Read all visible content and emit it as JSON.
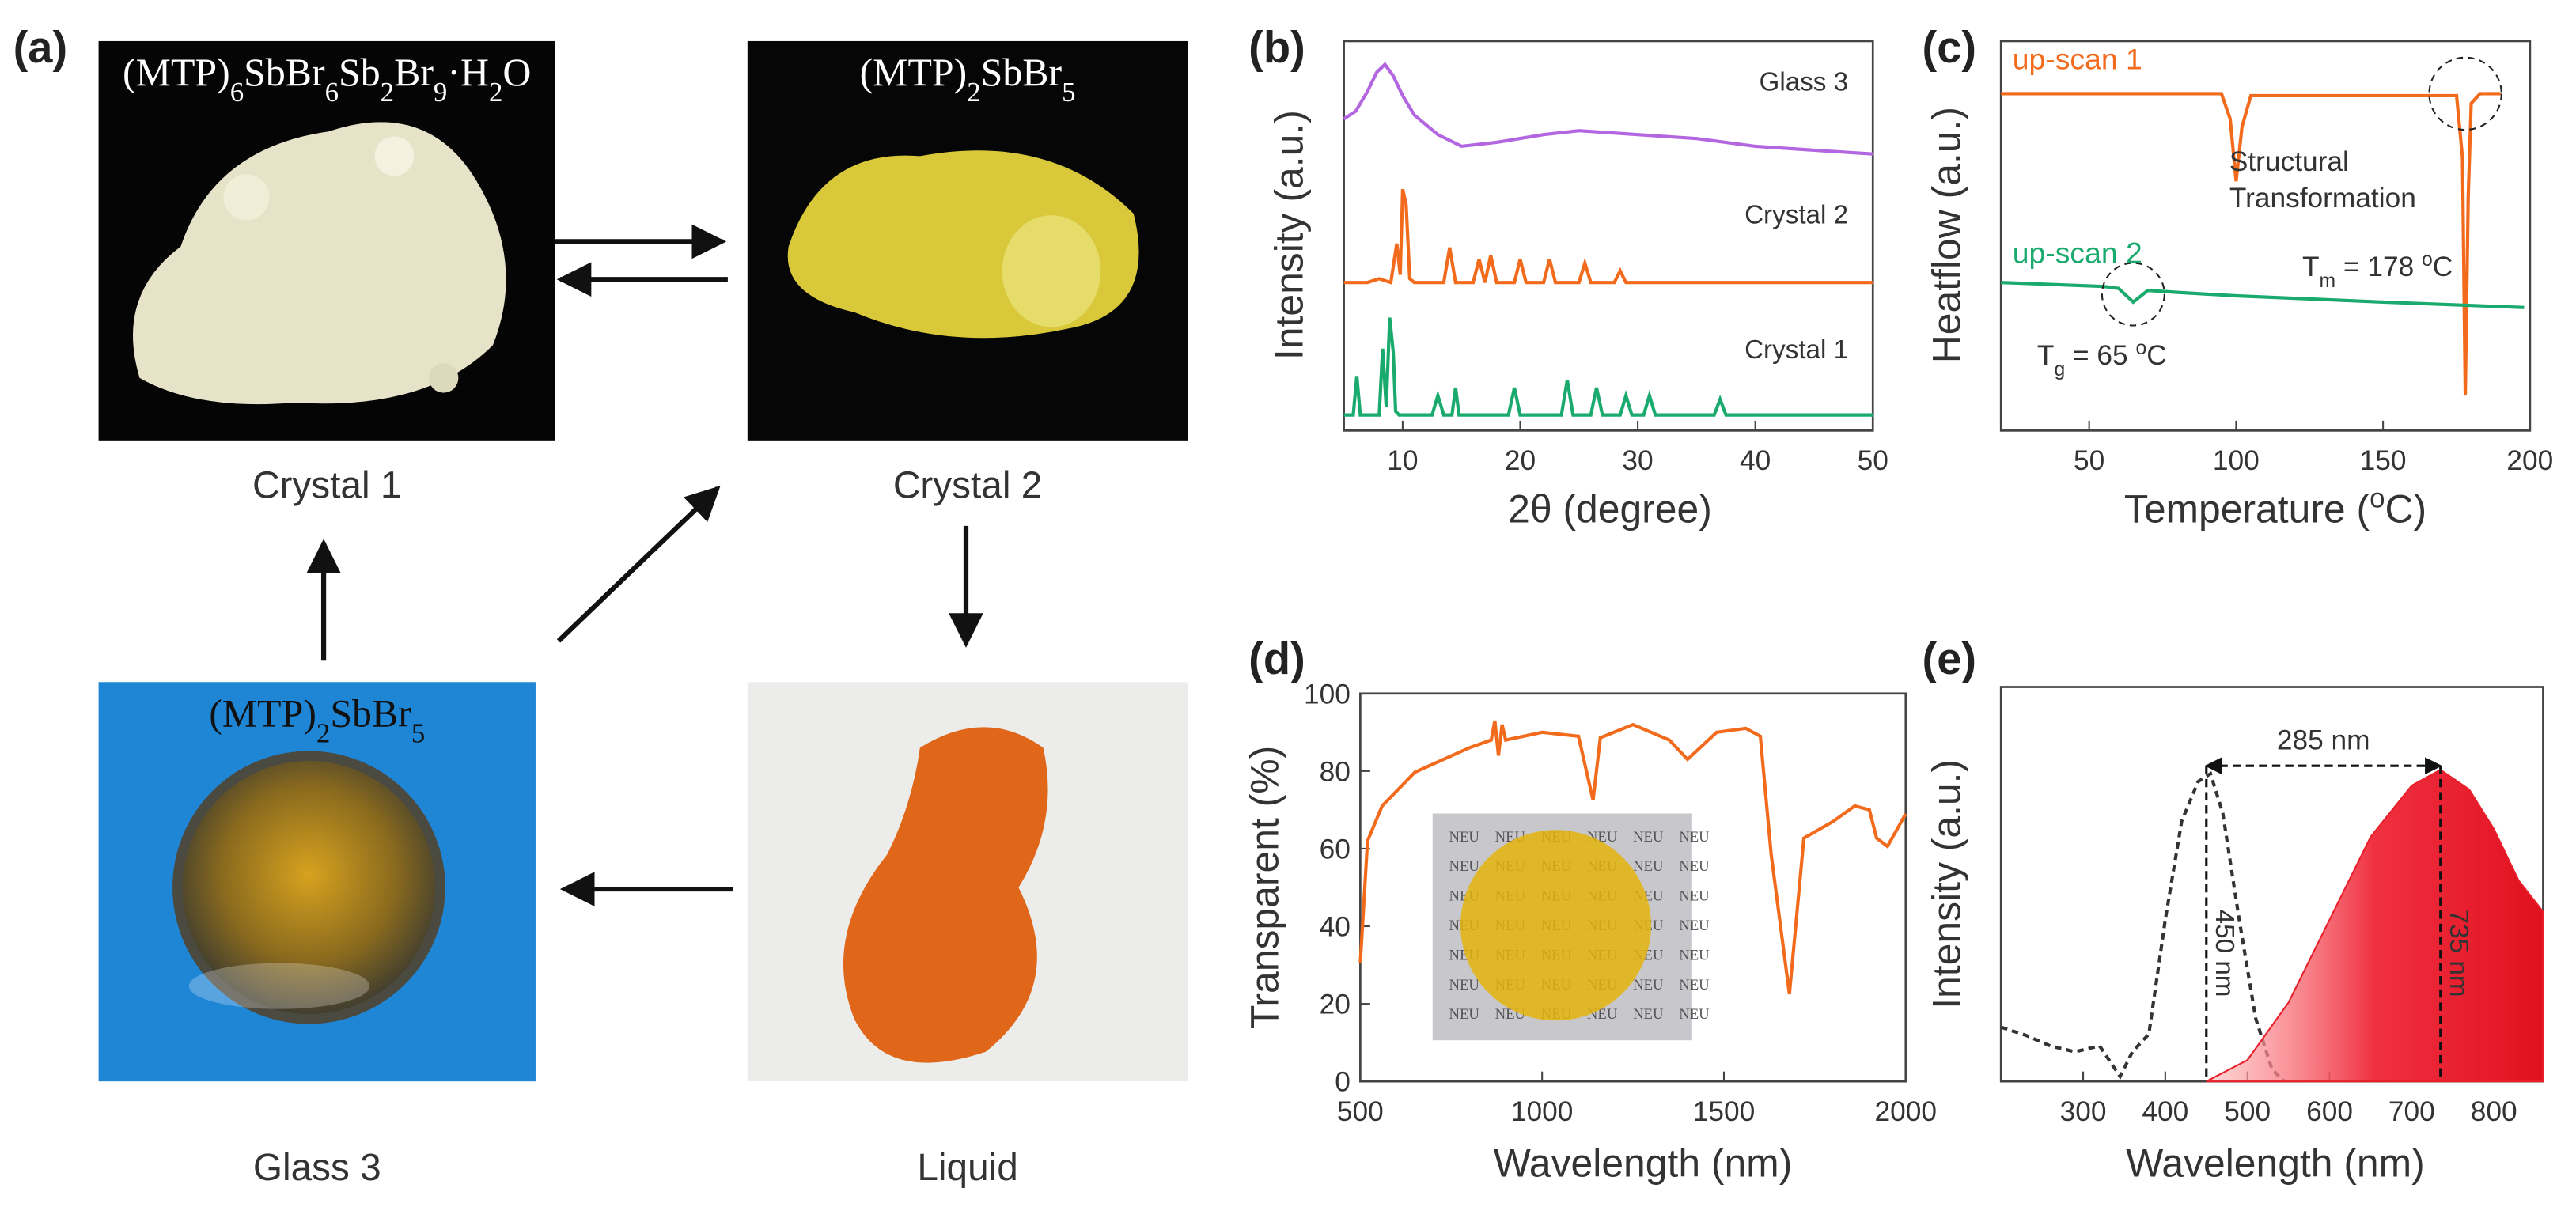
{
  "panel_labels": [
    "(a)",
    "(b)",
    "(c)",
    "(d)",
    "(e)"
  ],
  "photos": [
    {
      "caption": "Crystal 1",
      "formula": [
        {
          "text": "(MTP)"
        },
        {
          "text": "6",
          "script": "sub"
        },
        {
          "text": "SbBr"
        },
        {
          "text": "6",
          "script": "sub"
        },
        {
          "text": "Sb"
        },
        {
          "text": "2",
          "script": "sub"
        },
        {
          "text": "Br"
        },
        {
          "text": "9",
          "script": "sub"
        },
        {
          "text": "·H"
        },
        {
          "text": "2",
          "script": "sub"
        },
        {
          "text": "O"
        }
      ]
    },
    {
      "caption": "Crystal 2",
      "formula": [
        {
          "text": "(MTP)"
        },
        {
          "text": "2",
          "script": "sub"
        },
        {
          "text": "SbBr"
        },
        {
          "text": "5",
          "script": "sub"
        }
      ]
    },
    {
      "caption": "Glass 3",
      "formula": [
        {
          "text": "(MTP)"
        },
        {
          "text": "2",
          "script": "sub"
        },
        {
          "text": "SbBr"
        },
        {
          "text": "5",
          "script": "sub"
        }
      ]
    },
    {
      "caption": "Liquid"
    }
  ],
  "inset_text": "NEU",
  "chart_data": [
    {
      "type": "line",
      "xlabel": "2θ (degree)",
      "ylabel": "Intensity (a.u.)",
      "xlim": [
        5,
        50
      ],
      "ylim": [
        0,
        100
      ],
      "xticks": [
        10,
        20,
        30,
        40,
        50
      ],
      "series": [
        {
          "name": "Glass 3",
          "color": "#b266e0",
          "x": [
            5,
            6,
            7,
            7.8,
            8.5,
            9.2,
            10,
            11,
            13,
            15,
            18,
            22,
            25,
            30,
            35,
            40,
            45,
            50
          ],
          "values": [
            80,
            82,
            87,
            92,
            94,
            91,
            86,
            81,
            76,
            73,
            74,
            76,
            77,
            76,
            75,
            73,
            72,
            71
          ]
        },
        {
          "name": "Crystal 2",
          "color": "#f26b1d",
          "x": [
            5,
            7,
            8,
            9,
            9.5,
            9.8,
            10,
            10.3,
            10.6,
            11,
            13.5,
            14,
            14.5,
            16,
            16.5,
            17,
            17.5,
            18,
            19.5,
            20,
            20.5,
            22,
            22.5,
            23,
            25,
            25.5,
            26,
            28,
            28.5,
            29,
            35,
            50
          ],
          "values": [
            38,
            38,
            39,
            38,
            48,
            40,
            62,
            58,
            39,
            38,
            38,
            47,
            38,
            38,
            44,
            38,
            45,
            38,
            38,
            44,
            38,
            38,
            44,
            38,
            38,
            43,
            38,
            38,
            41,
            38,
            38,
            38
          ]
        },
        {
          "name": "Crystal 1",
          "color": "#1aaa6e",
          "x": [
            5,
            5.8,
            6.1,
            6.4,
            8,
            8.3,
            8.6,
            8.9,
            9.2,
            9.4,
            9.7,
            12.5,
            13,
            13.5,
            14.2,
            14.5,
            14.8,
            19,
            19.5,
            20,
            23.5,
            24,
            24.5,
            26,
            26.5,
            27,
            28.5,
            29,
            29.5,
            30.5,
            31,
            31.5,
            36.5,
            37,
            37.5,
            50
          ],
          "values": [
            4,
            4,
            14,
            4,
            4,
            21,
            6,
            29,
            20,
            5,
            4,
            4,
            9,
            4,
            4,
            11,
            4,
            4,
            11,
            4,
            4,
            13,
            4,
            4,
            11,
            4,
            4,
            9,
            4,
            4,
            9,
            4,
            4,
            8,
            4,
            4
          ]
        }
      ]
    },
    {
      "type": "line",
      "xlabel": [
        {
          "text": "Temperature  ("
        },
        {
          "text": "o",
          "script": "sup"
        },
        {
          "text": "C)"
        }
      ],
      "ylabel": "Heatflow (a.u.)",
      "xlim": [
        20,
        200
      ],
      "ylim": [
        0,
        100
      ],
      "xticks": [
        50,
        100,
        150,
        200
      ],
      "series": [
        {
          "name": "up-scan 1",
          "color": "#f26b1d",
          "x": [
            20,
            95,
            98,
            100,
            102,
            105,
            175,
            177,
            178,
            179,
            180,
            183,
            190
          ],
          "values": [
            86.5,
            86.5,
            80,
            64,
            78,
            86,
            86,
            70,
            9,
            60,
            84,
            86.5,
            86.5
          ]
        },
        {
          "name": "up-scan 2",
          "color": "#1aaa6e",
          "x": [
            20,
            55,
            60,
            65,
            70,
            80,
            100,
            150,
            198
          ],
          "values": [
            38,
            37,
            36.5,
            33,
            36,
            35.5,
            34.6,
            33,
            31.6
          ]
        }
      ],
      "annotations": [
        "Structural",
        "Transformation",
        [
          {
            "text": "T"
          },
          {
            "text": "m",
            "script": "sub"
          },
          {
            "text": " = 178 "
          },
          {
            "text": "o",
            "script": "sup"
          },
          {
            "text": "C"
          }
        ],
        [
          {
            "text": "T"
          },
          {
            "text": "g",
            "script": "sub"
          },
          {
            "text": " = 65 "
          },
          {
            "text": "o",
            "script": "sup"
          },
          {
            "text": "C"
          }
        ]
      ]
    },
    {
      "type": "line",
      "xlabel": "Wavelength  (nm)",
      "ylabel": "Transparent (%)",
      "xlim": [
        500,
        2000
      ],
      "ylim": [
        0,
        100
      ],
      "xticks": [
        500,
        1000,
        1500,
        2000
      ],
      "yticks": [
        0,
        20,
        40,
        60,
        80,
        100
      ],
      "series": [
        {
          "color": "#f26b1d",
          "x": [
            500,
            520,
            560,
            650,
            800,
            860,
            870,
            880,
            890,
            900,
            1000,
            1100,
            1140,
            1160,
            1250,
            1350,
            1400,
            1480,
            1560,
            1600,
            1630,
            1680,
            1720,
            1800,
            1860,
            1900,
            1920,
            1950,
            2000
          ],
          "values": [
            30.5,
            62,
            71,
            79.7,
            86,
            88,
            93,
            84,
            92,
            88,
            90,
            89,
            72.5,
            88.6,
            92,
            88,
            83,
            90,
            91,
            89,
            58.5,
            22.5,
            62.7,
            67,
            71,
            70,
            62.7,
            60.6,
            69
          ]
        }
      ]
    },
    {
      "type": "line",
      "xlabel": "Wavelength  (nm)",
      "ylabel": "Intensity (a.u.)",
      "xlim": [
        200,
        860
      ],
      "ylim": [
        0,
        100
      ],
      "xticks": [
        300,
        400,
        500,
        600,
        700,
        800
      ],
      "series": [
        {
          "color": "#333333",
          "style": "dashed",
          "x": [
            200,
            230,
            260,
            290,
            320,
            345,
            360,
            380,
            400,
            420,
            440,
            455,
            470,
            490,
            510,
            530,
            545
          ],
          "values": [
            13.75,
            11.7,
            9,
            7.5,
            9,
            1.25,
            7.5,
            12,
            41,
            66,
            76,
            78,
            68,
            41,
            16,
            3,
            0
          ]
        },
        {
          "color": "#e8202a",
          "fill": true,
          "x": [
            450,
            500,
            550,
            600,
            650,
            700,
            735,
            770,
            800,
            830,
            860
          ],
          "values": [
            0,
            5.4,
            20,
            41,
            62,
            75,
            79,
            74,
            64,
            51,
            43
          ]
        }
      ],
      "markers": [
        {
          "x": 450,
          "label": "450 nm"
        },
        {
          "x": 735,
          "label": "735 nm"
        }
      ],
      "span_label": "285 nm"
    }
  ]
}
